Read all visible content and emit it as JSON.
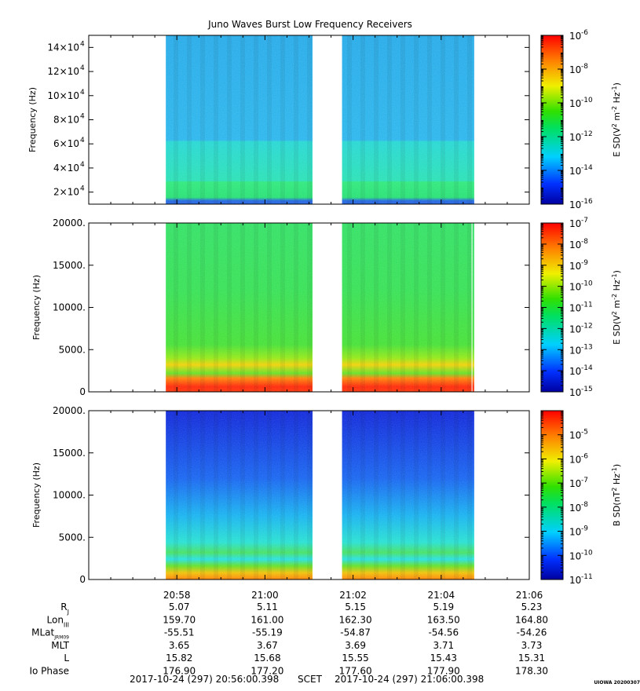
{
  "chart_data": [
    {
      "type": "heatmap",
      "title": "Juno Waves Burst Low Frequency Receivers",
      "ylabel": "Frequency (Hz)",
      "yticks": [
        20000,
        40000,
        60000,
        80000,
        100000,
        120000,
        140000
      ],
      "ytick_labels": [
        {
          "m": "2",
          "e": "4"
        },
        {
          "m": "4",
          "e": "4"
        },
        {
          "m": "6",
          "e": "4"
        },
        {
          "m": "8",
          "e": "4"
        },
        {
          "m": "10",
          "e": "4"
        },
        {
          "m": "12",
          "e": "4"
        },
        {
          "m": "14",
          "e": "4"
        }
      ],
      "ylim": [
        10000,
        150000
      ],
      "colorbar_label": "E SD(V^2 m^-2 Hz^-1)",
      "colorbar_range": [
        1e-16,
        1e-06
      ],
      "colorbar_ticks": [
        {
          "e": "-6",
          "v": -6
        },
        {
          "e": "-8",
          "v": -8
        },
        {
          "e": "-10",
          "v": -10
        },
        {
          "e": "-12",
          "v": -12
        },
        {
          "e": "-14",
          "v": -14
        },
        {
          "e": "-16",
          "v": -16
        }
      ],
      "data_gaps": [
        [
          "20:56:00",
          "20:57:45"
        ],
        [
          "21:01:05",
          "21:01:45"
        ],
        [
          "21:04:45",
          "21:06:00"
        ]
      ]
    },
    {
      "type": "heatmap",
      "ylabel": "Frequency (Hz)",
      "yticks": [
        0,
        5000,
        10000,
        15000,
        20000
      ],
      "ytick_labels": [
        "0",
        "5000.",
        "10000.",
        "15000.",
        "20000."
      ],
      "ylim": [
        0,
        20000
      ],
      "colorbar_label": "E SD(V^2 m^-2 Hz^-1)",
      "colorbar_range": [
        1e-15,
        1e-07
      ],
      "colorbar_ticks": [
        {
          "e": "-7",
          "v": -7
        },
        {
          "e": "-8",
          "v": -8
        },
        {
          "e": "-9",
          "v": -9
        },
        {
          "e": "-10",
          "v": -10
        },
        {
          "e": "-11",
          "v": -11
        },
        {
          "e": "-12",
          "v": -12
        },
        {
          "e": "-13",
          "v": -13
        },
        {
          "e": "-14",
          "v": -14
        },
        {
          "e": "-15",
          "v": -15
        }
      ]
    },
    {
      "type": "heatmap",
      "ylabel": "Frequency (Hz)",
      "yticks": [
        0,
        5000,
        10000,
        15000,
        20000
      ],
      "ytick_labels": [
        "0",
        "5000.",
        "10000.",
        "15000.",
        "20000."
      ],
      "ylim": [
        0,
        20000
      ],
      "colorbar_label": "B SD(nT^2 Hz^-1)",
      "colorbar_range": [
        1e-11,
        0.0001
      ],
      "colorbar_ticks": [
        {
          "e": "-5",
          "v": -5
        },
        {
          "e": "-6",
          "v": -6
        },
        {
          "e": "-7",
          "v": -7
        },
        {
          "e": "-8",
          "v": -8
        },
        {
          "e": "-9",
          "v": -9
        },
        {
          "e": "-10",
          "v": -10
        },
        {
          "e": "-11",
          "v": -11
        }
      ]
    }
  ],
  "xaxis": {
    "xlim": [
      "20:56:00",
      "21:06:00"
    ],
    "tick_labels": [
      "20:58",
      "21:00",
      "21:02",
      "21:04",
      "21:06"
    ],
    "tick_minutes": [
      2,
      4,
      6,
      8,
      10
    ]
  },
  "ephemeris": [
    {
      "label": "R",
      "sub": "J",
      "values": [
        "5.07",
        "5.11",
        "5.15",
        "5.19",
        "5.23"
      ]
    },
    {
      "label": "Lon",
      "sub": "III",
      "values": [
        "159.70",
        "161.00",
        "162.30",
        "163.50",
        "164.80"
      ]
    },
    {
      "label": "MLat",
      "sub": "JRM09",
      "values": [
        "-55.51",
        "-55.19",
        "-54.87",
        "-54.56",
        "-54.26"
      ]
    },
    {
      "label": "MLT",
      "sub": "",
      "values": [
        "3.65",
        "3.67",
        "3.69",
        "3.71",
        "3.73"
      ]
    },
    {
      "label": "L",
      "sub": "",
      "values": [
        "15.82",
        "15.68",
        "15.55",
        "15.43",
        "15.31"
      ]
    },
    {
      "label": "Io Phase",
      "sub": "",
      "values": [
        "176.90",
        "177.20",
        "177.60",
        "177.90",
        "178.30"
      ]
    }
  ],
  "footer": {
    "start": "2017-10-24 (297) 20:56:00.398",
    "scet": "SCET",
    "end": "2017-10-24 (297) 21:06:00.398"
  },
  "stamp": "UIOWA 20200307",
  "colors": {
    "background": "#ffffff",
    "axis": "#000000"
  }
}
